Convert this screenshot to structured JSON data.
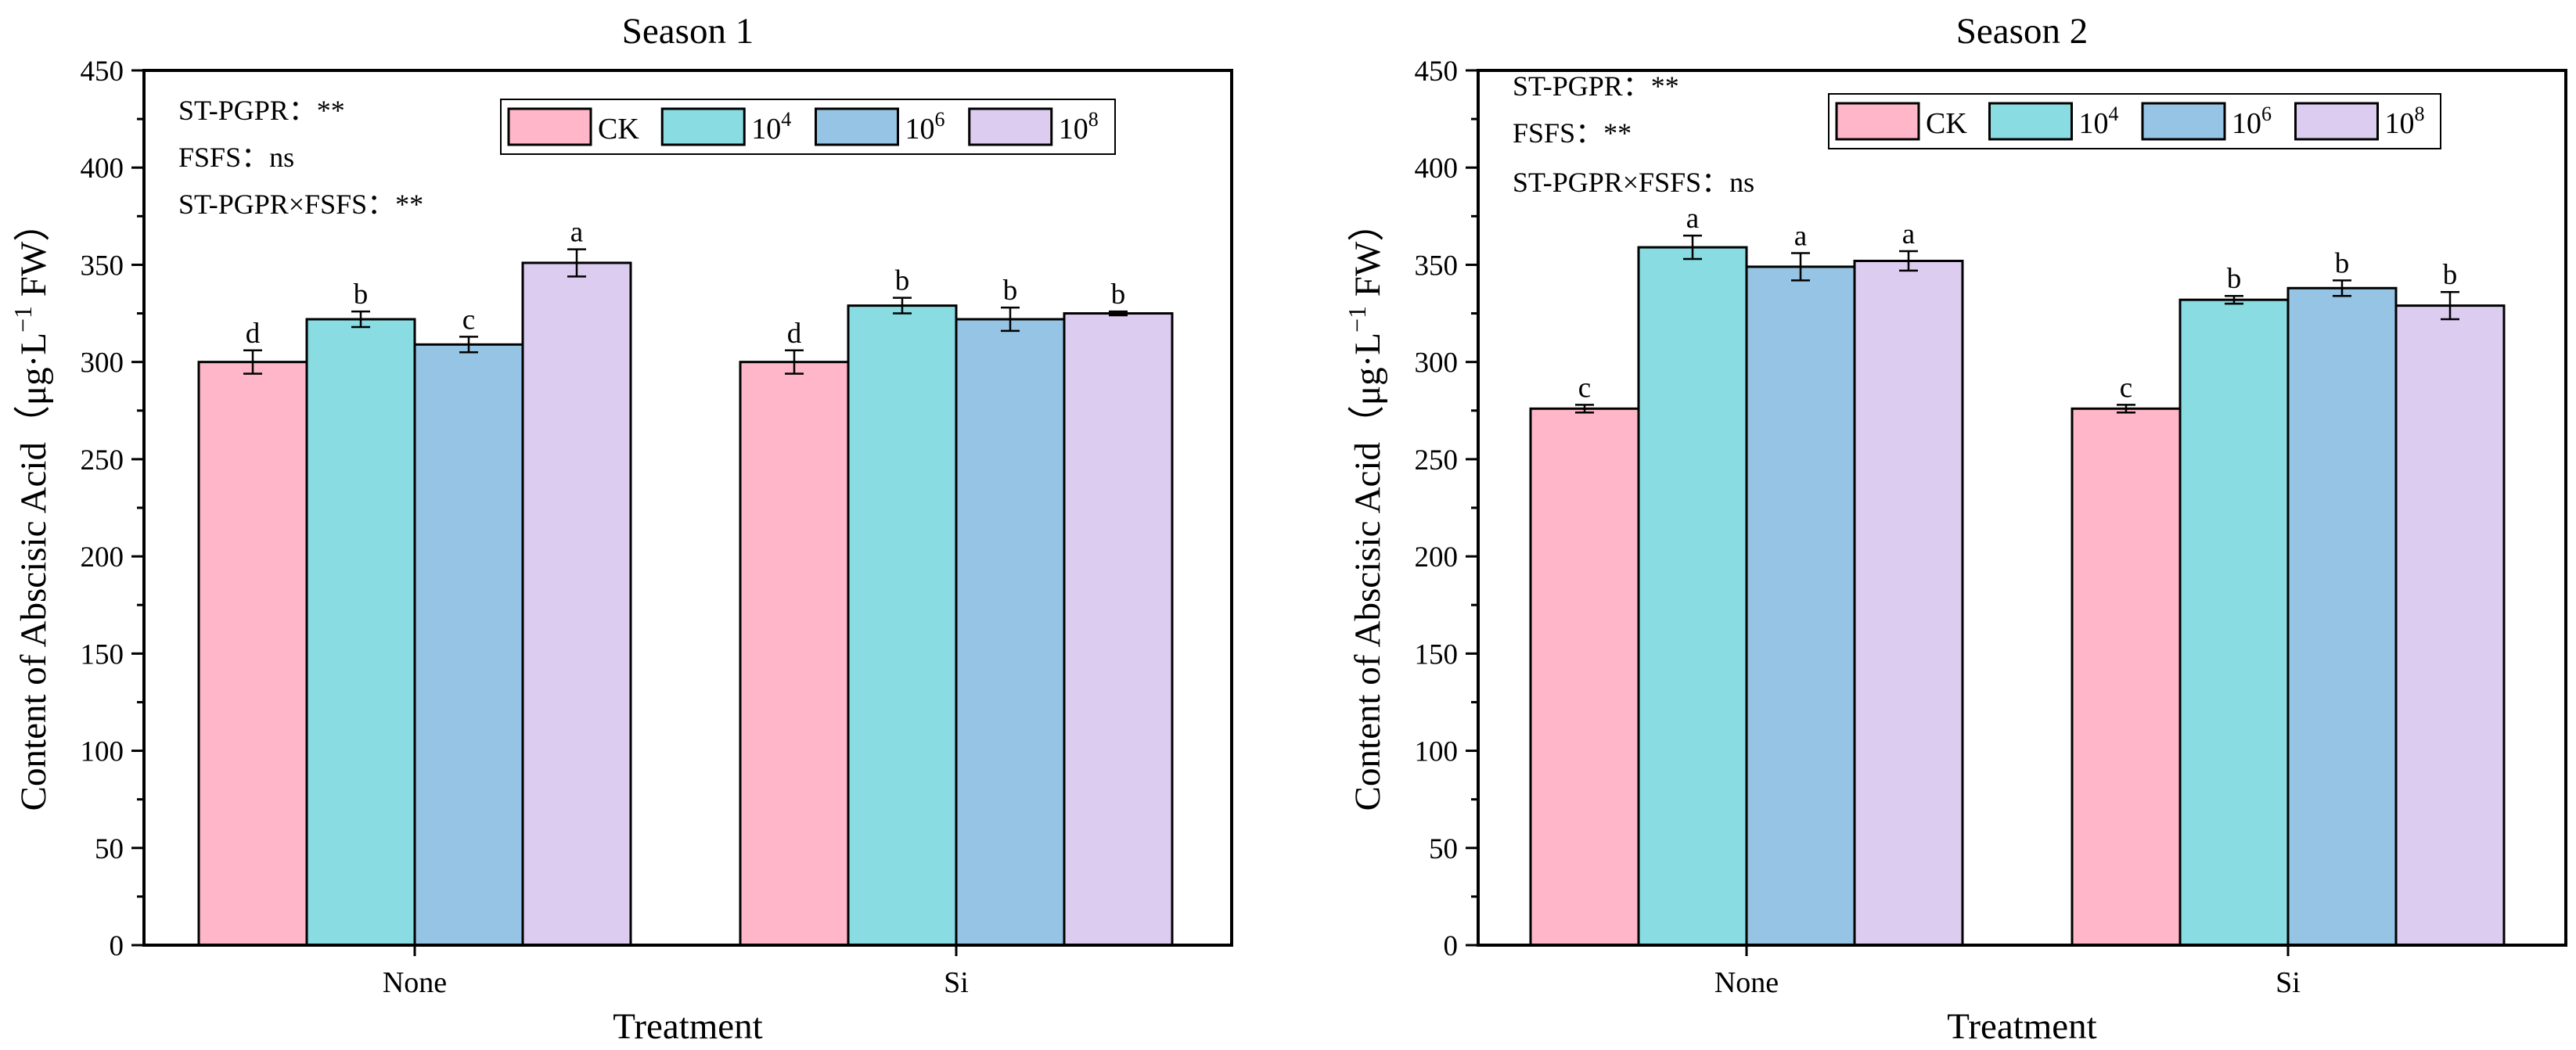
{
  "chart_data": [
    {
      "type": "bar",
      "title": "Season 1",
      "xlabel": "Treatment",
      "ylabel": "Content of  Abscisic Acid（μg·L",
      "ylabel_sup": "−1",
      "ylabel_tail": " FW）",
      "ylim": [
        0,
        450
      ],
      "yticks": [
        0,
        50,
        100,
        150,
        200,
        250,
        300,
        350,
        400,
        450
      ],
      "categories": [
        "None",
        "Si"
      ],
      "legend": [
        {
          "label": "CK",
          "base": "CK",
          "sup": "",
          "color": "#FFB6C8"
        },
        {
          "label": "10^4",
          "base": "10",
          "sup": "4",
          "color": "#88DCE2"
        },
        {
          "label": "10^6",
          "base": "10",
          "sup": "6",
          "color": "#96C4E4"
        },
        {
          "label": "10^8",
          "base": "10",
          "sup": "8",
          "color": "#DCCCF0"
        }
      ],
      "series": [
        {
          "name": "CK",
          "values": [
            300,
            300
          ],
          "errors": [
            6,
            6
          ],
          "letters": [
            "d",
            "d"
          ]
        },
        {
          "name": "10^4",
          "values": [
            322,
            329
          ],
          "errors": [
            4,
            4
          ],
          "letters": [
            "b",
            "b"
          ]
        },
        {
          "name": "10^6",
          "values": [
            309,
            322
          ],
          "errors": [
            4,
            6
          ],
          "letters": [
            "c",
            "b"
          ]
        },
        {
          "name": "10^8",
          "values": [
            351,
            325
          ],
          "errors": [
            7,
            1
          ],
          "letters": [
            "a",
            "b"
          ]
        }
      ],
      "stats": [
        "ST-PGPR：**",
        "FSFS：ns",
        "ST-PGPR×FSFS：**"
      ]
    },
    {
      "type": "bar",
      "title": "Season 2",
      "xlabel": "Treatment",
      "ylabel": "Content of  Abscisic Acid（μg·L",
      "ylabel_sup": "−1",
      "ylabel_tail": " FW）",
      "ylim": [
        0,
        450
      ],
      "yticks": [
        0,
        50,
        100,
        150,
        200,
        250,
        300,
        350,
        400,
        450
      ],
      "categories": [
        "None",
        "Si"
      ],
      "legend": [
        {
          "label": "CK",
          "base": "CK",
          "sup": "",
          "color": "#FFB6C8"
        },
        {
          "label": "10^4",
          "base": "10",
          "sup": "4",
          "color": "#88DCE2"
        },
        {
          "label": "10^6",
          "base": "10",
          "sup": "6",
          "color": "#96C4E4"
        },
        {
          "label": "10^8",
          "base": "10",
          "sup": "8",
          "color": "#DCCCF0"
        }
      ],
      "series": [
        {
          "name": "CK",
          "values": [
            276,
            276
          ],
          "errors": [
            2,
            2
          ],
          "letters": [
            "c",
            "c"
          ]
        },
        {
          "name": "10^4",
          "values": [
            359,
            332
          ],
          "errors": [
            6,
            2
          ],
          "letters": [
            "a",
            "b"
          ]
        },
        {
          "name": "10^6",
          "values": [
            349,
            338
          ],
          "errors": [
            7,
            4
          ],
          "letters": [
            "a",
            "b"
          ]
        },
        {
          "name": "10^8",
          "values": [
            352,
            329
          ],
          "errors": [
            5,
            7
          ],
          "letters": [
            "a",
            "b"
          ]
        }
      ],
      "stats": [
        "ST-PGPR：**",
        "FSFS：**",
        "ST-PGPR×FSFS：ns"
      ]
    }
  ]
}
